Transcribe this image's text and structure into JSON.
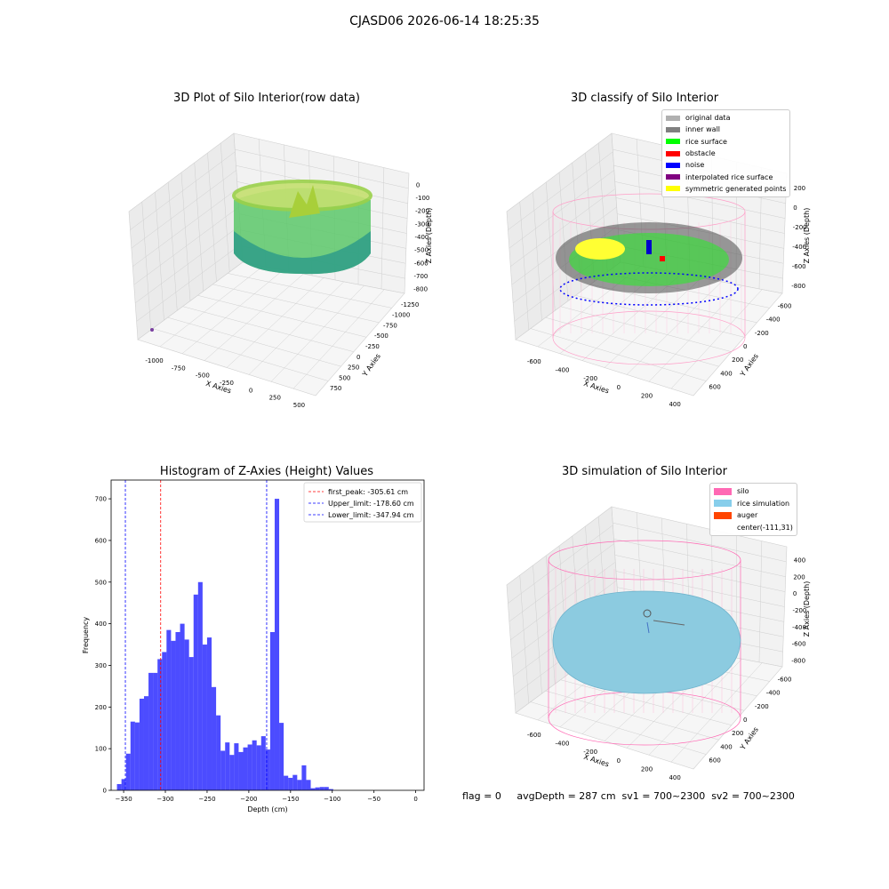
{
  "suptitle": "CJASD06 2026-06-14 18:25:35",
  "panels": {
    "p1": {
      "title": "3D Plot of Silo Interior(row data)",
      "xlabel": "X Axies",
      "ylabel": "Y Axies",
      "zlabel": "Z Axies (Depth)",
      "xticks": [
        "-1000",
        "-750",
        "-500",
        "-250",
        "0",
        "250",
        "500"
      ],
      "yticks": [
        "750",
        "500",
        "250",
        "0",
        "-250",
        "-500",
        "-750",
        "-1000",
        "-1250"
      ],
      "zticks": [
        "0",
        "-100",
        "-200",
        "-300",
        "-400",
        "-500",
        "-600",
        "-700",
        "-800"
      ]
    },
    "p2": {
      "title": "3D classify of Silo Interior",
      "xlabel": "X Axies",
      "ylabel": "Y Axies",
      "zlabel": "Z Axies (Depth)",
      "xticks": [
        "-600",
        "-400",
        "-200",
        "0",
        "200",
        "400"
      ],
      "yticks": [
        "600",
        "400",
        "200",
        "0",
        "-200",
        "-400",
        "-600"
      ],
      "zticks": [
        "200",
        "0",
        "-200",
        "-400",
        "-600",
        "-800"
      ],
      "legend": [
        {
          "label": "original data",
          "color": "#b0b0b0"
        },
        {
          "label": "inner wall",
          "color": "#808080"
        },
        {
          "label": "rice surface",
          "color": "#00ff00"
        },
        {
          "label": "obstacle",
          "color": "#ff0000"
        },
        {
          "label": "noise",
          "color": "#0000ff"
        },
        {
          "label": "interpolated rice surface",
          "color": "#800080"
        },
        {
          "label": "symmetric generated points",
          "color": "#ffff00"
        }
      ]
    },
    "p4": {
      "title": "3D simulation of Silo Interior",
      "xlabel": "X Axies",
      "ylabel": "Y Axies",
      "zlabel": "Z Axies (Depth)",
      "xticks": [
        "-600",
        "-400",
        "-200",
        "0",
        "200",
        "400"
      ],
      "yticks": [
        "600",
        "400",
        "200",
        "0",
        "-200",
        "-400",
        "-600"
      ],
      "zticks": [
        "400",
        "200",
        "0",
        "-200",
        "-400",
        "-600",
        "-800"
      ],
      "legend": [
        {
          "label": "silo",
          "color": "#ff69b4"
        },
        {
          "label": "rice simulation",
          "color": "#87ceeb"
        },
        {
          "label": "auger",
          "color": "#ff4500"
        },
        {
          "label": "center(-111,31)",
          "color": ""
        }
      ]
    }
  },
  "chart_data": {
    "type": "bar",
    "title": "Histogram of Z-Axies (Height) Values",
    "xlabel": "Depth (cm)",
    "ylabel": "Frequency",
    "xlim": [
      -365,
      10
    ],
    "ylim": [
      0,
      745
    ],
    "xticks": [
      -350,
      -300,
      -250,
      -200,
      -150,
      -100,
      -50,
      0
    ],
    "yticks": [
      0,
      100,
      200,
      300,
      400,
      500,
      600,
      700
    ],
    "bin_start": -358,
    "bin_width": 5.4,
    "values": [
      15,
      27,
      88,
      165,
      163,
      220,
      226,
      282,
      282,
      315,
      332,
      385,
      359,
      380,
      400,
      362,
      320,
      470,
      500,
      350,
      367,
      248,
      180,
      95,
      115,
      85,
      113,
      92,
      103,
      110,
      120,
      108,
      130,
      98,
      380,
      700,
      162,
      35,
      30,
      37,
      25,
      60,
      25,
      5,
      7,
      8,
      8,
      3
    ],
    "color": "#0000ff",
    "vlines": [
      {
        "label": "first_peak: -305.61 cm",
        "x": -305.61,
        "color": "#ff0000"
      },
      {
        "label": "Upper_limit: -178.60 cm",
        "x": -178.6,
        "color": "#0000ff"
      },
      {
        "label": "Lower_limit: -347.94 cm",
        "x": -347.94,
        "color": "#0000ff"
      }
    ]
  },
  "footer": "flag = 0     avgDepth = 287 cm  sv1 = 700~2300  sv2 = 700~2300"
}
